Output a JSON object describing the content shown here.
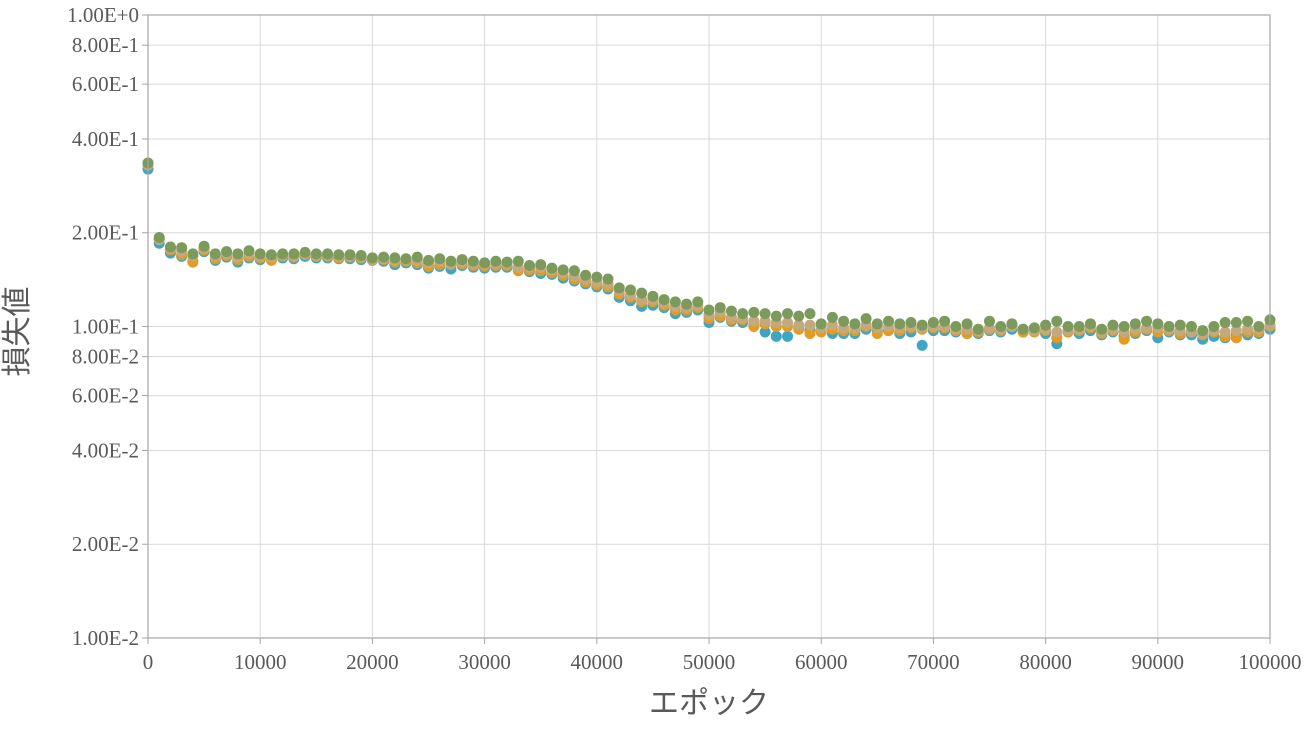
{
  "chart_data": {
    "type": "scatter",
    "title": "",
    "xlabel": "エポック",
    "ylabel": "損失値",
    "xlim": [
      0,
      100000
    ],
    "ylim": [
      0.01,
      1.0
    ],
    "yscale": "log",
    "grid": true,
    "legend": "none",
    "x_ticks": [
      "0",
      "10000",
      "20000",
      "30000",
      "40000",
      "50000",
      "60000",
      "70000",
      "80000",
      "90000",
      "100000"
    ],
    "y_ticks": [
      "1.00E+0",
      "8.00E-1",
      "6.00E-1",
      "4.00E-1",
      "2.00E-1",
      "1.00E-1",
      "8.00E-2",
      "6.00E-2",
      "4.00E-2",
      "2.00E-2",
      "1.00E-2"
    ],
    "series": [
      {
        "color": "#3ea6c2",
        "x": [
          0,
          1000,
          2000,
          3000,
          4000,
          5000,
          6000,
          7000,
          8000,
          9000,
          10000,
          11000,
          12000,
          13000,
          14000,
          15000,
          16000,
          17000,
          18000,
          19000,
          20000,
          21000,
          22000,
          23000,
          24000,
          25000,
          26000,
          27000,
          28000,
          29000,
          30000,
          31000,
          32000,
          33000,
          34000,
          35000,
          36000,
          37000,
          38000,
          39000,
          40000,
          41000,
          42000,
          43000,
          44000,
          45000,
          46000,
          47000,
          48000,
          49000,
          50000,
          51000,
          52000,
          53000,
          54000,
          55000,
          56000,
          57000,
          58000,
          59000,
          60000,
          61000,
          62000,
          63000,
          64000,
          65000,
          66000,
          67000,
          68000,
          69000,
          70000,
          71000,
          72000,
          73000,
          74000,
          75000,
          76000,
          77000,
          78000,
          79000,
          80000,
          81000,
          82000,
          83000,
          84000,
          85000,
          86000,
          87000,
          88000,
          89000,
          90000,
          91000,
          92000,
          93000,
          94000,
          95000,
          96000,
          97000,
          98000,
          99000,
          100000
        ],
        "y": [
          0.32,
          0.185,
          0.172,
          0.168,
          0.162,
          0.174,
          0.163,
          0.167,
          0.161,
          0.166,
          0.164,
          0.165,
          0.166,
          0.165,
          0.168,
          0.166,
          0.166,
          0.165,
          0.165,
          0.164,
          0.163,
          0.162,
          0.158,
          0.16,
          0.158,
          0.154,
          0.156,
          0.153,
          0.157,
          0.155,
          0.154,
          0.155,
          0.155,
          0.153,
          0.15,
          0.148,
          0.147,
          0.143,
          0.14,
          0.137,
          0.134,
          0.132,
          0.124,
          0.121,
          0.116,
          0.117,
          0.115,
          0.11,
          0.111,
          0.113,
          0.103,
          0.107,
          0.104,
          0.103,
          0.101,
          0.096,
          0.093,
          0.093,
          0.099,
          0.097,
          0.097,
          0.095,
          0.095,
          0.095,
          0.098,
          0.097,
          0.097,
          0.095,
          0.096,
          0.087,
          0.097,
          0.097,
          0.096,
          0.095,
          0.095,
          0.097,
          0.096,
          0.098,
          0.096,
          0.097,
          0.095,
          0.088,
          0.096,
          0.095,
          0.097,
          0.094,
          0.096,
          0.093,
          0.095,
          0.097,
          0.092,
          0.096,
          0.094,
          0.094,
          0.091,
          0.093,
          0.092,
          0.094,
          0.094,
          0.095,
          0.098
        ]
      },
      {
        "color": "#e39b22",
        "x": [
          0,
          1000,
          2000,
          3000,
          4000,
          5000,
          6000,
          7000,
          8000,
          9000,
          10000,
          11000,
          12000,
          13000,
          14000,
          15000,
          16000,
          17000,
          18000,
          19000,
          20000,
          21000,
          22000,
          23000,
          24000,
          25000,
          26000,
          27000,
          28000,
          29000,
          30000,
          31000,
          32000,
          33000,
          34000,
          35000,
          36000,
          37000,
          38000,
          39000,
          40000,
          41000,
          42000,
          43000,
          44000,
          45000,
          46000,
          47000,
          48000,
          49000,
          50000,
          51000,
          52000,
          53000,
          54000,
          55000,
          56000,
          57000,
          58000,
          59000,
          60000,
          61000,
          62000,
          63000,
          64000,
          65000,
          66000,
          67000,
          68000,
          69000,
          70000,
          71000,
          72000,
          73000,
          74000,
          75000,
          76000,
          77000,
          78000,
          79000,
          80000,
          81000,
          82000,
          83000,
          84000,
          85000,
          86000,
          87000,
          88000,
          89000,
          90000,
          91000,
          92000,
          93000,
          94000,
          95000,
          96000,
          97000,
          98000,
          99000,
          100000
        ],
        "y": [
          0.33,
          0.19,
          0.176,
          0.17,
          0.161,
          0.176,
          0.165,
          0.169,
          0.164,
          0.168,
          0.166,
          0.163,
          0.168,
          0.167,
          0.17,
          0.168,
          0.168,
          0.166,
          0.167,
          0.166,
          0.163,
          0.164,
          0.161,
          0.162,
          0.16,
          0.156,
          0.158,
          0.158,
          0.159,
          0.157,
          0.156,
          0.157,
          0.157,
          0.151,
          0.152,
          0.151,
          0.149,
          0.146,
          0.142,
          0.139,
          0.136,
          0.134,
          0.127,
          0.124,
          0.12,
          0.12,
          0.117,
          0.113,
          0.113,
          0.115,
          0.106,
          0.108,
          0.105,
          0.105,
          0.1,
          0.102,
          0.1,
          0.1,
          0.098,
          0.095,
          0.096,
          0.098,
          0.097,
          0.097,
          0.1,
          0.095,
          0.097,
          0.097,
          0.099,
          0.098,
          0.099,
          0.099,
          0.097,
          0.095,
          0.096,
          0.098,
          0.097,
          0.1,
          0.096,
          0.096,
          0.097,
          0.092,
          0.096,
          0.097,
          0.099,
          0.095,
          0.097,
          0.091,
          0.096,
          0.098,
          0.096,
          0.097,
          0.095,
          0.096,
          0.094,
          0.096,
          0.093,
          0.092,
          0.096,
          0.096,
          0.1
        ]
      },
      {
        "color": "#c4a97f",
        "x": [
          0,
          1000,
          2000,
          3000,
          4000,
          5000,
          6000,
          7000,
          8000,
          9000,
          10000,
          11000,
          12000,
          13000,
          14000,
          15000,
          16000,
          17000,
          18000,
          19000,
          20000,
          21000,
          22000,
          23000,
          24000,
          25000,
          26000,
          27000,
          28000,
          29000,
          30000,
          31000,
          32000,
          33000,
          34000,
          35000,
          36000,
          37000,
          38000,
          39000,
          40000,
          41000,
          42000,
          43000,
          44000,
          45000,
          46000,
          47000,
          48000,
          49000,
          50000,
          51000,
          52000,
          53000,
          54000,
          55000,
          56000,
          57000,
          58000,
          59000,
          60000,
          61000,
          62000,
          63000,
          64000,
          65000,
          66000,
          67000,
          68000,
          69000,
          70000,
          71000,
          72000,
          73000,
          74000,
          75000,
          76000,
          77000,
          78000,
          79000,
          80000,
          81000,
          82000,
          83000,
          84000,
          85000,
          86000,
          87000,
          88000,
          89000,
          90000,
          91000,
          92000,
          93000,
          94000,
          95000,
          96000,
          97000,
          98000,
          99000,
          100000
        ],
        "y": [
          0.33,
          0.19,
          0.178,
          0.174,
          0.168,
          0.178,
          0.168,
          0.171,
          0.167,
          0.171,
          0.168,
          0.167,
          0.169,
          0.168,
          0.171,
          0.169,
          0.169,
          0.168,
          0.168,
          0.167,
          0.164,
          0.165,
          0.163,
          0.164,
          0.163,
          0.16,
          0.162,
          0.159,
          0.161,
          0.159,
          0.158,
          0.159,
          0.159,
          0.155,
          0.155,
          0.155,
          0.152,
          0.149,
          0.145,
          0.142,
          0.139,
          0.137,
          0.13,
          0.126,
          0.122,
          0.122,
          0.119,
          0.116,
          0.115,
          0.117,
          0.109,
          0.111,
          0.107,
          0.106,
          0.104,
          0.104,
          0.103,
          0.103,
          0.101,
          0.101,
          0.099,
          0.101,
          0.099,
          0.099,
          0.101,
          0.099,
          0.1,
          0.099,
          0.1,
          0.099,
          0.1,
          0.1,
          0.098,
          0.098,
          0.097,
          0.099,
          0.098,
          0.1,
          0.098,
          0.097,
          0.098,
          0.096,
          0.097,
          0.098,
          0.1,
          0.096,
          0.098,
          0.096,
          0.098,
          0.099,
          0.099,
          0.098,
          0.097,
          0.096,
          0.095,
          0.097,
          0.096,
          0.097,
          0.098,
          0.098,
          0.101
        ]
      },
      {
        "color": "#7b9a5c",
        "x": [
          0,
          1000,
          2000,
          3000,
          4000,
          5000,
          6000,
          7000,
          8000,
          9000,
          10000,
          11000,
          12000,
          13000,
          14000,
          15000,
          16000,
          17000,
          18000,
          19000,
          20000,
          21000,
          22000,
          23000,
          24000,
          25000,
          26000,
          27000,
          28000,
          29000,
          30000,
          31000,
          32000,
          33000,
          34000,
          35000,
          36000,
          37000,
          38000,
          39000,
          40000,
          41000,
          42000,
          43000,
          44000,
          45000,
          46000,
          47000,
          48000,
          49000,
          50000,
          51000,
          52000,
          53000,
          54000,
          55000,
          56000,
          57000,
          58000,
          59000,
          60000,
          61000,
          62000,
          63000,
          64000,
          65000,
          66000,
          67000,
          68000,
          69000,
          70000,
          71000,
          72000,
          73000,
          74000,
          75000,
          76000,
          77000,
          78000,
          79000,
          80000,
          81000,
          82000,
          83000,
          84000,
          85000,
          86000,
          87000,
          88000,
          89000,
          90000,
          91000,
          92000,
          93000,
          94000,
          95000,
          96000,
          97000,
          98000,
          99000,
          100000
        ],
        "y": [
          0.335,
          0.193,
          0.18,
          0.179,
          0.171,
          0.181,
          0.171,
          0.174,
          0.171,
          0.175,
          0.171,
          0.17,
          0.171,
          0.171,
          0.173,
          0.171,
          0.171,
          0.17,
          0.17,
          0.169,
          0.166,
          0.167,
          0.166,
          0.165,
          0.167,
          0.163,
          0.165,
          0.162,
          0.164,
          0.162,
          0.16,
          0.162,
          0.161,
          0.162,
          0.157,
          0.158,
          0.154,
          0.152,
          0.151,
          0.146,
          0.144,
          0.142,
          0.133,
          0.131,
          0.128,
          0.125,
          0.122,
          0.12,
          0.118,
          0.12,
          0.113,
          0.115,
          0.112,
          0.11,
          0.111,
          0.11,
          0.108,
          0.11,
          0.108,
          0.11,
          0.102,
          0.107,
          0.104,
          0.102,
          0.106,
          0.102,
          0.104,
          0.102,
          0.103,
          0.101,
          0.103,
          0.104,
          0.1,
          0.102,
          0.098,
          0.104,
          0.1,
          0.102,
          0.098,
          0.099,
          0.101,
          0.104,
          0.1,
          0.1,
          0.102,
          0.098,
          0.101,
          0.1,
          0.102,
          0.104,
          0.102,
          0.1,
          0.101,
          0.1,
          0.097,
          0.1,
          0.103,
          0.103,
          0.104,
          0.1,
          0.105
        ]
      }
    ]
  }
}
